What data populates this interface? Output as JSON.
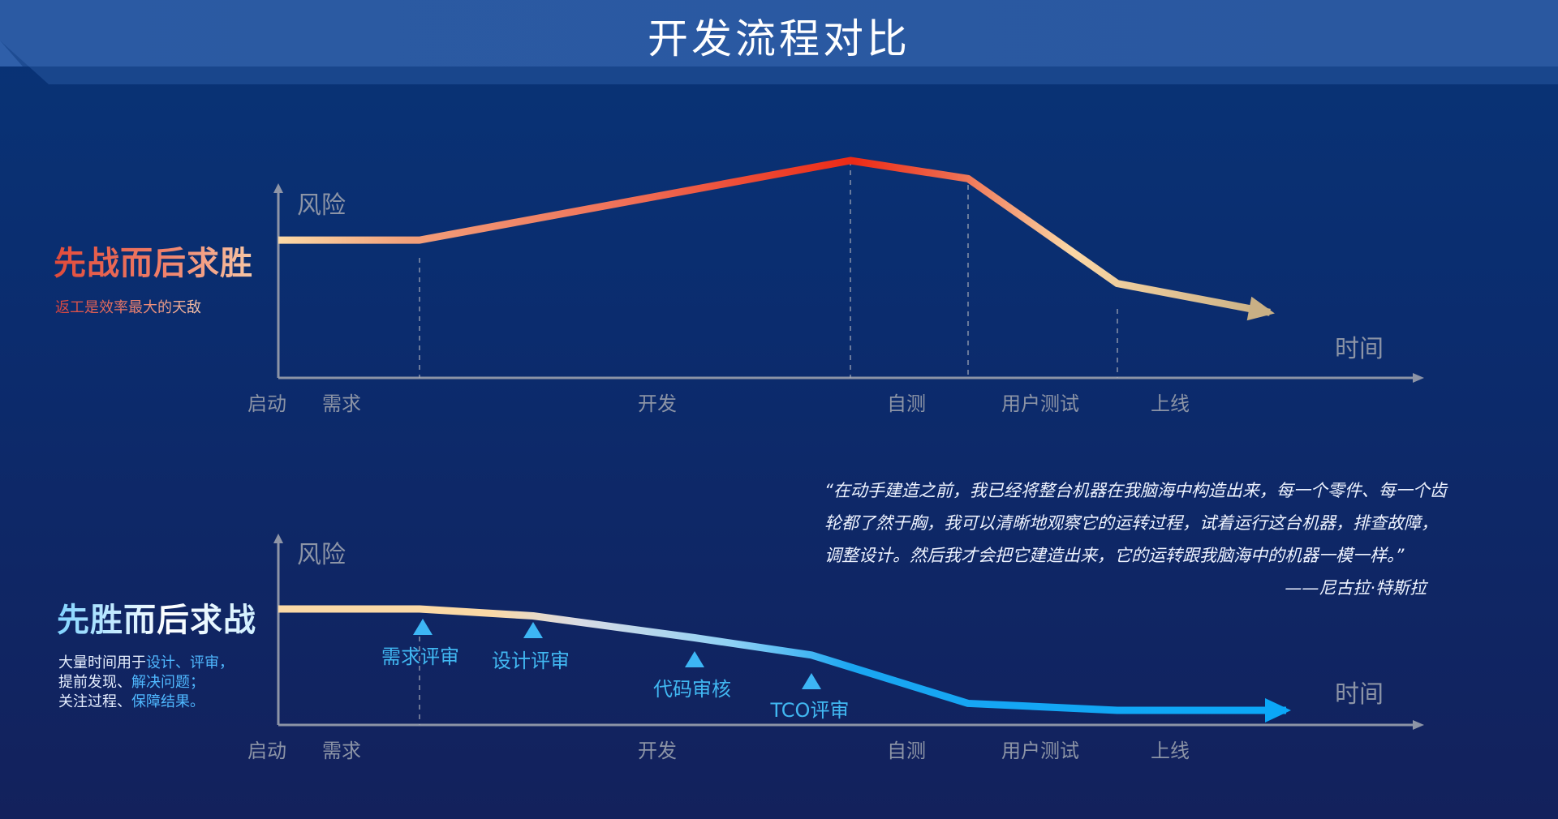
{
  "title": "开发流程对比",
  "colors": {
    "background_top": "#083477",
    "background_bottom": "#13215c",
    "axis": "#8d94a6",
    "axis_text": "#8c94a6",
    "top_curve_start": "#fbd9a6",
    "top_curve_peak": "#ec2a16",
    "top_curve_end": "#c9b085",
    "bottom_curve_start": "#fbd9a6",
    "bottom_curve_end": "#1aa6f2",
    "review_marker": "#3db6f5"
  },
  "top_panel": {
    "slogan": "先战而后求胜",
    "subnote": "返工是效率最大的天敌"
  },
  "bottom_panel": {
    "slogan": "先胜而后求战",
    "subnote": {
      "line1_a": "大量时间用于",
      "line1_b": "设计、评审，",
      "line2_a": "提前发现、",
      "line2_b": "解决问题；",
      "line3_a": "关注过程、",
      "line3_b": "保障结果。"
    }
  },
  "quote": {
    "text": "“在动手建造之前，我已经将整台机器在我脑海中构造出来，每一个零件、每一个齿轮都了然于胸，我可以清晰地观察它的运转过程，试着运行这台机器，排查故障，调整设计。然后我才会把它建造出来，它的运转跟我脑海中的机器一模一样。”",
    "author": "——尼古拉·特斯拉"
  },
  "chart_data": [
    {
      "type": "line",
      "ylabel": "风险",
      "xlabel": "时间",
      "y_ticks_shown": false,
      "ylim": [
        0,
        100
      ],
      "x_stage_labels": [
        "启动",
        "需求",
        "开发",
        "自测",
        "用户测试",
        "上线"
      ],
      "stage_boundaries": [
        "需求",
        "自测",
        "用户测试",
        "上线"
      ],
      "series": [
        {
          "values": [
            {
              "x": "启动",
              "y": 56
            },
            {
              "x": "需求",
              "y": 56
            },
            {
              "x": "自测开始",
              "y": 100
            },
            {
              "x": "用户测试开始",
              "y": 90
            },
            {
              "x": "上线",
              "y": 32
            },
            {
              "x": "时间末端",
              "y": 16
            }
          ]
        }
      ],
      "annotations": []
    },
    {
      "type": "line",
      "ylabel": "风险",
      "xlabel": "时间",
      "y_ticks_shown": false,
      "ylim": [
        0,
        100
      ],
      "x_stage_labels": [
        "启动",
        "需求",
        "开发",
        "自测",
        "用户测试",
        "上线"
      ],
      "stage_boundaries": [
        "需求"
      ],
      "series": [
        {
          "values": [
            {
              "x": "启动",
              "y": 100
            },
            {
              "x": "需求",
              "y": 100
            },
            {
              "x": "设计评审",
              "y": 94
            },
            {
              "x": "代码审核",
              "y": 75
            },
            {
              "x": "TCO评审",
              "y": 60
            },
            {
              "x": "用户测试开始",
              "y": 18
            },
            {
              "x": "上线",
              "y": 12
            },
            {
              "x": "时间末端",
              "y": 12
            }
          ]
        }
      ],
      "annotations": [
        {
          "label": "需求评审"
        },
        {
          "label": "设计评审"
        },
        {
          "label": "代码审核"
        },
        {
          "label": "TCO评审"
        }
      ]
    }
  ]
}
